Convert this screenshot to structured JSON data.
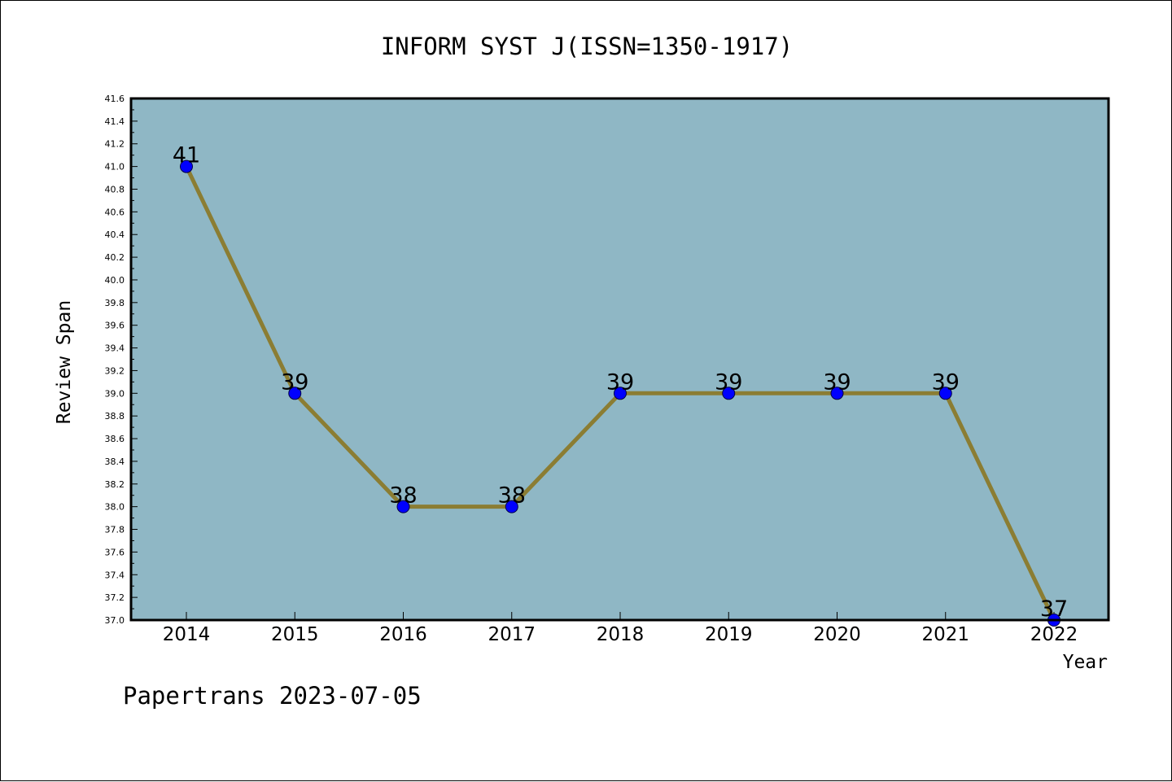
{
  "chart_data": {
    "type": "line",
    "title": "INFORM SYST J(ISSN=1350-1917)",
    "xlabel": "Year",
    "ylabel": "Review Span",
    "categories": [
      "2014",
      "2015",
      "2016",
      "2017",
      "2018",
      "2019",
      "2020",
      "2021",
      "2022"
    ],
    "series": [
      {
        "values": [
          41,
          39,
          38,
          38,
          39,
          39,
          39,
          39,
          37
        ]
      }
    ],
    "data_labels": [
      "41",
      "39",
      "38",
      "38",
      "39",
      "39",
      "39",
      "39",
      "37"
    ],
    "ylim": [
      37.0,
      41.6
    ],
    "ytick_step": 0.2,
    "grid": false,
    "legend": "none",
    "colors": {
      "plot_background": "#8fb7c5",
      "line": "#8b7d33",
      "marker": "#0000ff",
      "marker_edge": "#000044"
    }
  },
  "footer": "Papertrans 2023-07-05"
}
